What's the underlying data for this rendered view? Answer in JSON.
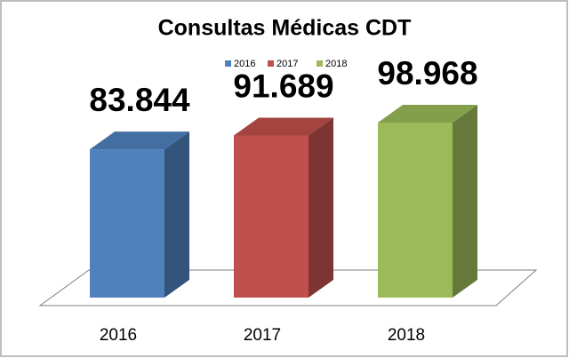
{
  "chart_data": {
    "type": "bar3d",
    "title": "Consultas Médicas CDT",
    "categories": [
      "2016",
      "2017",
      "2018"
    ],
    "series": [
      {
        "name": "2016",
        "color": "#4f81bd",
        "values": [
          83844,
          null,
          null
        ],
        "value_labels": [
          "83.844",
          null,
          null
        ]
      },
      {
        "name": "2017",
        "color": "#c0504d",
        "values": [
          null,
          91689,
          null
        ],
        "value_labels": [
          null,
          "91.689",
          null
        ]
      },
      {
        "name": "2018",
        "color": "#9bbb59",
        "values": [
          null,
          null,
          98968
        ],
        "value_labels": [
          null,
          null,
          "98.968"
        ]
      }
    ],
    "legend": "top"
  }
}
